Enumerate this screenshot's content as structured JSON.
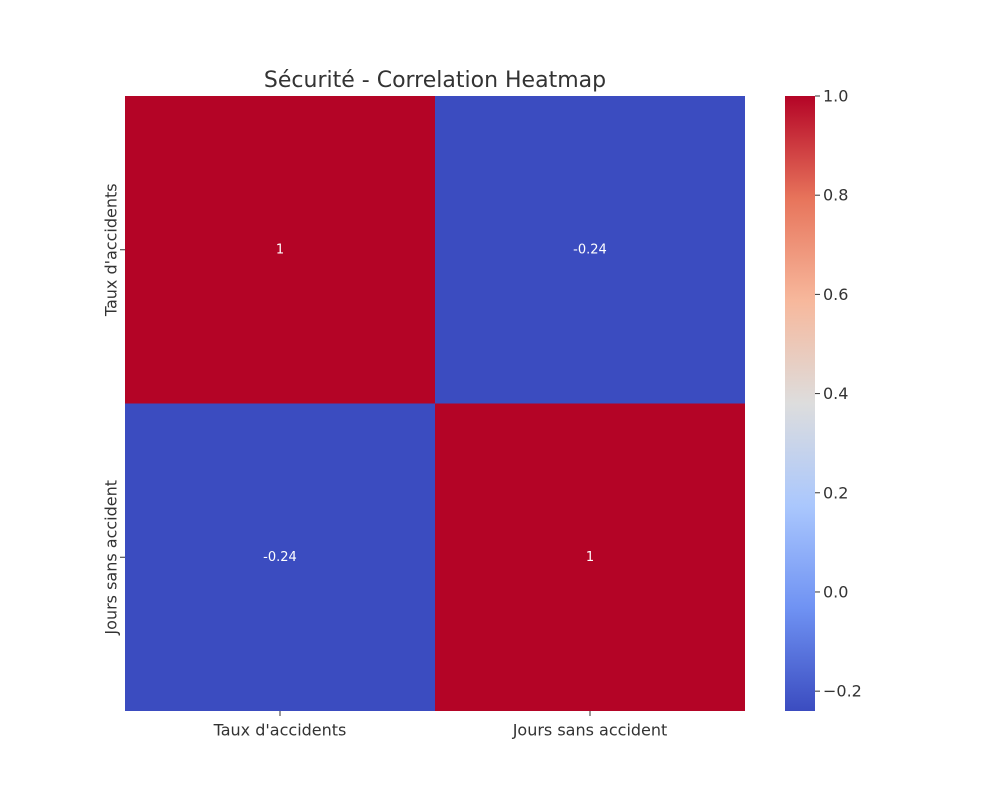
{
  "chart_data": {
    "type": "heatmap",
    "title": "Sécurité - Correlation Heatmap",
    "xlabel": "",
    "ylabel": "",
    "rows": [
      "Taux d'accidents",
      "Jours sans accident"
    ],
    "columns": [
      "Taux d'accidents",
      "Jours sans accident"
    ],
    "values": [
      [
        1,
        -0.24
      ],
      [
        -0.24,
        1
      ]
    ],
    "annotations": [
      [
        "1",
        "-0.24"
      ],
      [
        "-0.24",
        "1"
      ]
    ],
    "colormap": "coolwarm",
    "colorbar": {
      "min": -0.24,
      "max": 1.0,
      "ticks": [
        -0.2,
        0.0,
        0.2,
        0.4,
        0.6,
        0.8,
        1.0
      ],
      "tick_labels": [
        "−0.2",
        "0.0",
        "0.2",
        "0.4",
        "0.6",
        "0.8",
        "1.0"
      ]
    },
    "grid": false,
    "legend": "colorbar-right"
  },
  "colors": {
    "coolwarm_stops": [
      "#3b4cc0",
      "#6f92f3",
      "#aac7fd",
      "#dddddd",
      "#f7b89c",
      "#e7745b",
      "#b40426"
    ],
    "text": "#333333",
    "annotation_text": "#ffffff"
  }
}
